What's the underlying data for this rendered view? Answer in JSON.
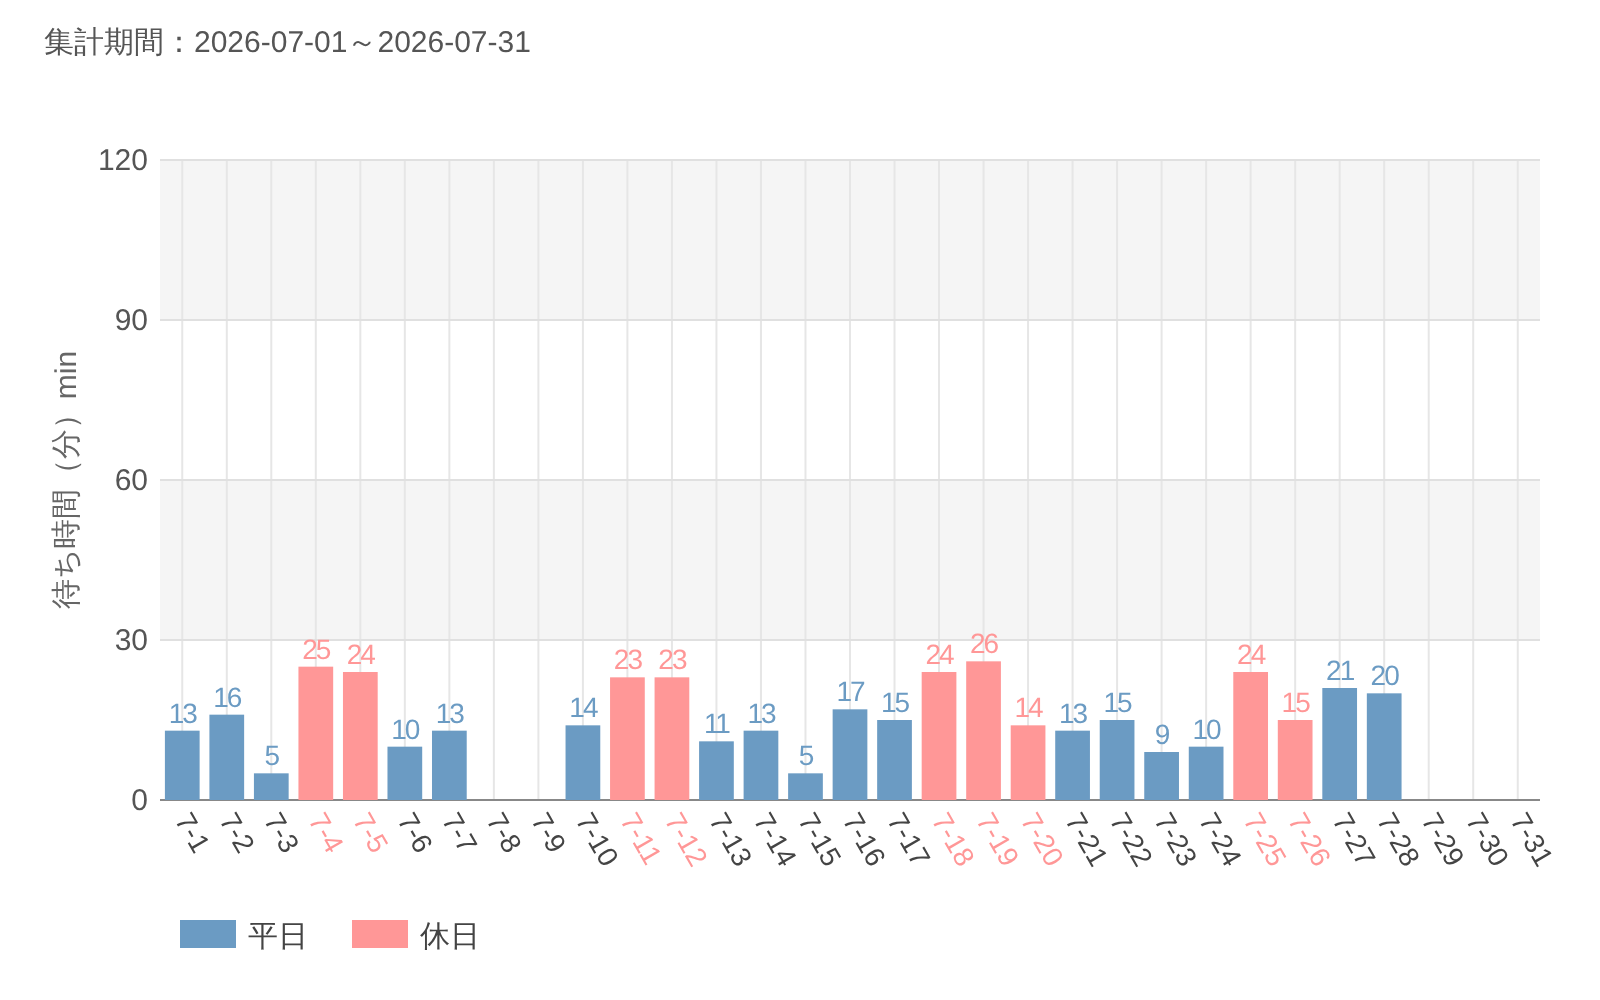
{
  "chart_data": {
    "type": "bar",
    "title": "集計期間：2026-07-01～2026-07-31",
    "ylabel": "待ち時間（分）min",
    "categories": [
      "7-1",
      "7-2",
      "7-3",
      "7-4",
      "7-5",
      "7-6",
      "7-7",
      "7-8",
      "7-9",
      "7-10",
      "7-11",
      "7-12",
      "7-13",
      "7-14",
      "7-15",
      "7-16",
      "7-17",
      "7-18",
      "7-19",
      "7-20",
      "7-21",
      "7-22",
      "7-23",
      "7-24",
      "7-25",
      "7-26",
      "7-27",
      "7-28",
      "7-29",
      "7-30",
      "7-31"
    ],
    "series": [
      {
        "name": "平日",
        "color": "#6b9bc3",
        "values": [
          13,
          16,
          5,
          null,
          null,
          10,
          13,
          null,
          null,
          14,
          null,
          null,
          11,
          13,
          5,
          17,
          15,
          null,
          null,
          null,
          13,
          15,
          9,
          10,
          null,
          null,
          21,
          20,
          null,
          null,
          null
        ]
      },
      {
        "name": "休日",
        "color": "#ff9797",
        "values": [
          null,
          null,
          null,
          25,
          24,
          null,
          null,
          null,
          null,
          null,
          23,
          23,
          null,
          null,
          null,
          null,
          null,
          24,
          26,
          14,
          null,
          null,
          null,
          null,
          24,
          15,
          null,
          null,
          null,
          null,
          null
        ]
      }
    ],
    "ylim": [
      0,
      120
    ],
    "yticks": [
      0,
      30,
      60,
      90,
      120
    ],
    "grid": true,
    "data_labels": true,
    "legend": "bottom left",
    "bands": [
      {
        "axis": "y",
        "from": 30,
        "to": 60,
        "color": "#f5f5f5"
      },
      {
        "axis": "y",
        "from": 90,
        "to": 120,
        "color": "#f5f5f5"
      }
    ]
  }
}
